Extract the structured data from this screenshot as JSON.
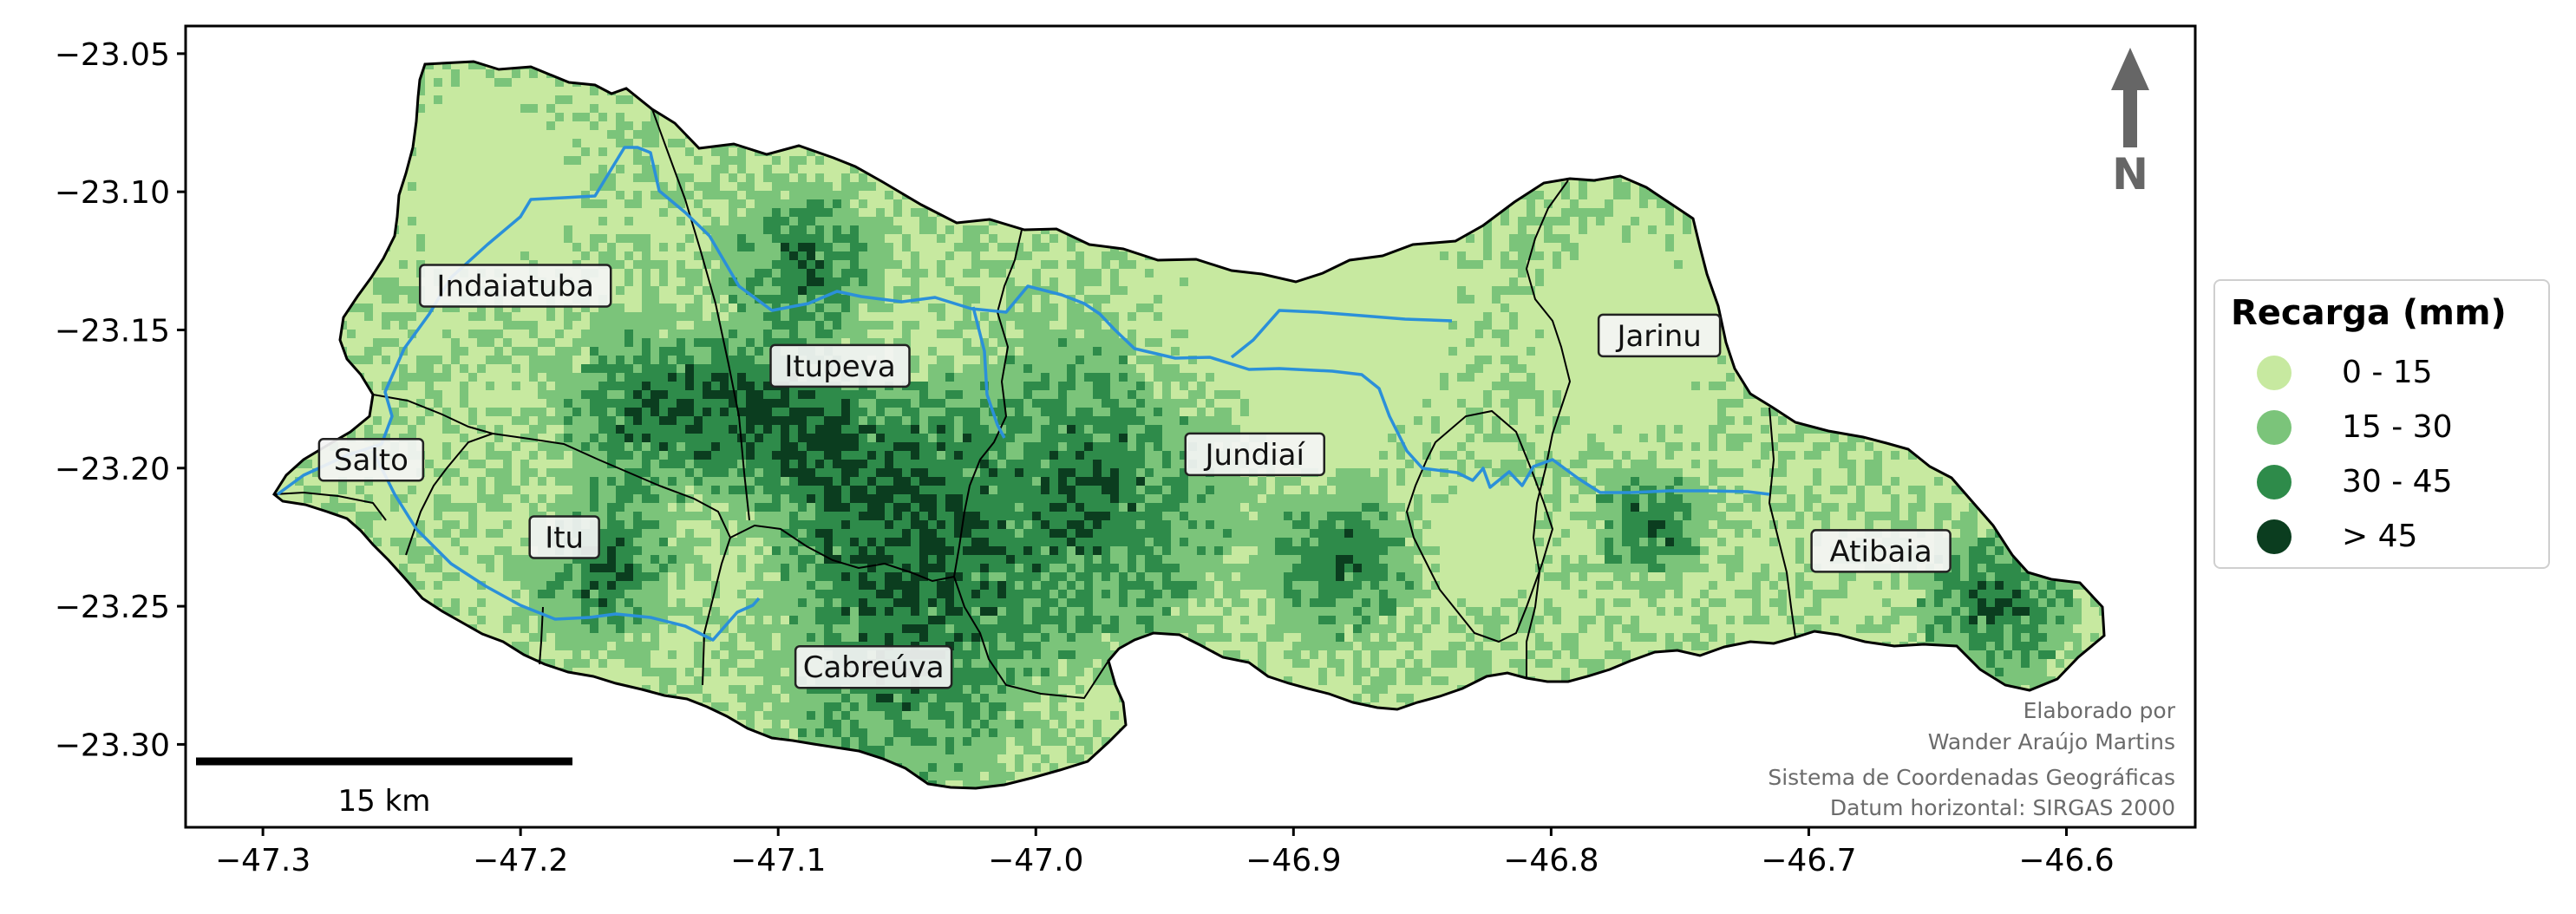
{
  "chart_data": {
    "type": "map",
    "x_ticks": [
      "−47.3",
      "−47.2",
      "−47.1",
      "−47.0",
      "−46.9",
      "−46.8",
      "−46.7",
      "−46.6"
    ],
    "y_ticks": [
      "−23.05",
      "−23.10",
      "−23.15",
      "−23.20",
      "−23.25",
      "−23.30"
    ],
    "xlim": [
      -47.33,
      -46.55
    ],
    "ylim": [
      -23.33,
      -23.04
    ],
    "places": [
      {
        "name": "Indaiatuba",
        "lon": -47.202,
        "lat": -23.134
      },
      {
        "name": "Itupeva",
        "lon": -47.076,
        "lat": -23.163
      },
      {
        "name": "Salto",
        "lon": -47.258,
        "lat": -23.197
      },
      {
        "name": "Itu",
        "lon": -47.183,
        "lat": -23.225
      },
      {
        "name": "Cabreúva",
        "lon": -47.063,
        "lat": -23.272
      },
      {
        "name": "Jundiaí",
        "lon": -46.915,
        "lat": -23.195
      },
      {
        "name": "Jarinu",
        "lon": -46.758,
        "lat": -23.152
      },
      {
        "name": "Atibaia",
        "lon": -46.672,
        "lat": -23.23
      }
    ],
    "legend": {
      "title": "Recarga (mm)",
      "placement": "right",
      "classes": [
        {
          "label": "0 - 15",
          "color": "#c7e9a0"
        },
        {
          "label": "15 - 30",
          "color": "#7bc47a"
        },
        {
          "label": "30 - 45",
          "color": "#2e8b4a"
        },
        {
          "label": "> 45",
          "color": "#0b3d1f"
        }
      ]
    },
    "river_color": "#2b90d9",
    "scale_bar": {
      "label": "15 km",
      "km": 15
    },
    "north_arrow": "N",
    "credits": [
      "Elaborado por",
      "Wander Araújo Martins",
      "Sistema de Coordenadas Geográficas",
      "Datum horizontal: SIRGAS 2000"
    ]
  }
}
